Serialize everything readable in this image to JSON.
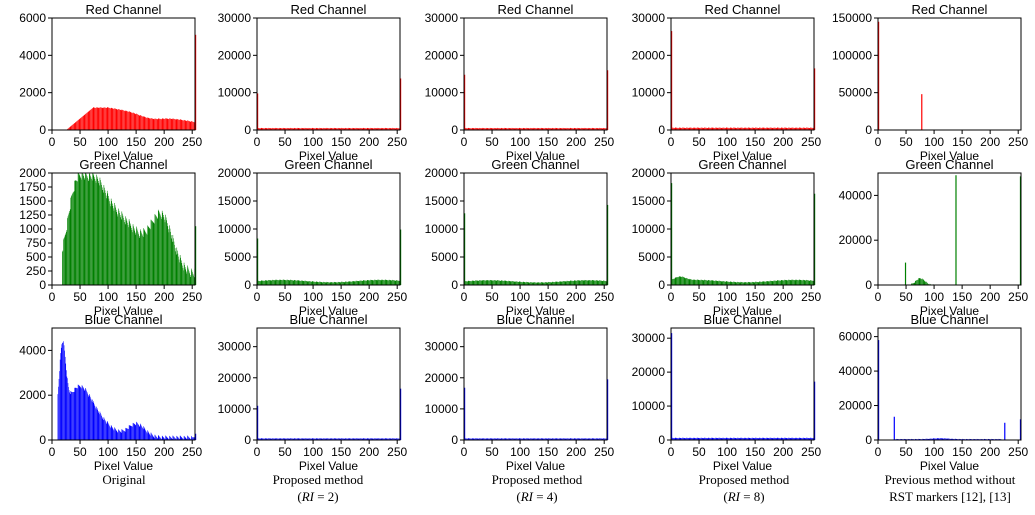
{
  "figure": {
    "captions": [
      {
        "lines": [
          "Original"
        ]
      },
      {
        "lines": [
          "Proposed method",
          "(RI = 2)"
        ]
      },
      {
        "lines": [
          "Proposed method",
          "(RI = 4)"
        ]
      },
      {
        "lines": [
          "Proposed method",
          "(RI = 8)"
        ]
      },
      {
        "lines": [
          "Previous method without",
          "RST markers [12], [13]"
        ]
      }
    ]
  },
  "colors": {
    "Red Channel": "#ff0000",
    "Green Channel": "#008000",
    "Blue Channel": "#0000ff"
  },
  "chart_data": [
    {
      "type": "bar",
      "title": "Red Channel",
      "xlabel": "Pixel Value",
      "col": 0,
      "row": 0,
      "color": "red",
      "xlim": [
        0,
        255
      ],
      "ylim": [
        0,
        6000
      ],
      "yticks": [
        0,
        2000,
        4000,
        6000
      ],
      "xticks": [
        0,
        50,
        100,
        150,
        200,
        250
      ],
      "profile": "orig_red",
      "spikes": [
        [
          255,
          5100
        ]
      ]
    },
    {
      "type": "bar",
      "title": "Red Channel",
      "xlabel": "Pixel Value",
      "col": 1,
      "row": 0,
      "color": "red",
      "xlim": [
        0,
        255
      ],
      "ylim": [
        0,
        30000
      ],
      "yticks": [
        0,
        10000,
        20000,
        30000
      ],
      "xticks": [
        0,
        50,
        100,
        150,
        200,
        250
      ],
      "profile": "flat",
      "level": 500,
      "spikes": [
        [
          0,
          9800
        ],
        [
          255,
          13800
        ]
      ]
    },
    {
      "type": "bar",
      "title": "Red Channel",
      "xlabel": "Pixel Value",
      "col": 2,
      "row": 0,
      "color": "red",
      "xlim": [
        0,
        255
      ],
      "ylim": [
        0,
        30000
      ],
      "yticks": [
        0,
        10000,
        20000,
        30000
      ],
      "xticks": [
        0,
        50,
        100,
        150,
        200,
        250
      ],
      "profile": "flat",
      "level": 500,
      "spikes": [
        [
          0,
          14800
        ],
        [
          255,
          16000
        ]
      ]
    },
    {
      "type": "bar",
      "title": "Red Channel",
      "xlabel": "Pixel Value",
      "col": 3,
      "row": 0,
      "color": "red",
      "xlim": [
        0,
        255
      ],
      "ylim": [
        0,
        30000
      ],
      "yticks": [
        0,
        10000,
        20000,
        30000
      ],
      "xticks": [
        0,
        50,
        100,
        150,
        200,
        250
      ],
      "profile": "flat",
      "level": 600,
      "spikes": [
        [
          0,
          26500
        ],
        [
          255,
          16500
        ]
      ]
    },
    {
      "type": "bar",
      "title": "Red Channel",
      "xlabel": "Pixel Value",
      "col": 4,
      "row": 0,
      "color": "red",
      "xlim": [
        0,
        255
      ],
      "ylim": [
        0,
        150000
      ],
      "yticks": [
        0,
        50000,
        100000,
        150000
      ],
      "xticks": [
        0,
        50,
        100,
        150,
        200,
        250
      ],
      "profile": "none",
      "spikes": [
        [
          0,
          145000
        ],
        [
          77,
          48000
        ]
      ]
    },
    {
      "type": "bar",
      "title": "Green Channel",
      "xlabel": "Pixel Value",
      "col": 0,
      "row": 1,
      "color": "green",
      "xlim": [
        0,
        255
      ],
      "ylim": [
        0,
        2000
      ],
      "yticks": [
        0,
        250,
        500,
        750,
        1000,
        1250,
        1500,
        1750,
        2000
      ],
      "xticks": [
        0,
        50,
        100,
        150,
        200,
        250
      ],
      "profile": "orig_green",
      "spikes": [
        [
          255,
          1050
        ]
      ]
    },
    {
      "type": "bar",
      "title": "Green Channel",
      "xlabel": "Pixel Value",
      "col": 1,
      "row": 1,
      "color": "green",
      "xlim": [
        0,
        255
      ],
      "ylim": [
        0,
        20000
      ],
      "yticks": [
        0,
        5000,
        10000,
        15000,
        20000
      ],
      "xticks": [
        0,
        50,
        100,
        150,
        200,
        250
      ],
      "profile": "wave",
      "level": 700,
      "spikes": [
        [
          0,
          8300
        ],
        [
          255,
          9900
        ]
      ]
    },
    {
      "type": "bar",
      "title": "Green Channel",
      "xlabel": "Pixel Value",
      "col": 2,
      "row": 1,
      "color": "green",
      "xlim": [
        0,
        255
      ],
      "ylim": [
        0,
        20000
      ],
      "yticks": [
        0,
        5000,
        10000,
        15000,
        20000
      ],
      "xticks": [
        0,
        50,
        100,
        150,
        200,
        250
      ],
      "profile": "wave",
      "level": 650,
      "spikes": [
        [
          0,
          12800
        ],
        [
          255,
          14300
        ]
      ]
    },
    {
      "type": "bar",
      "title": "Green Channel",
      "xlabel": "Pixel Value",
      "col": 3,
      "row": 1,
      "color": "green",
      "xlim": [
        0,
        255
      ],
      "ylim": [
        0,
        20000
      ],
      "yticks": [
        0,
        5000,
        10000,
        15000,
        20000
      ],
      "xticks": [
        0,
        50,
        100,
        150,
        200,
        250
      ],
      "profile": "wave_hi",
      "level": 700,
      "spikes": [
        [
          0,
          18200
        ],
        [
          255,
          16300
        ]
      ]
    },
    {
      "type": "bar",
      "title": "Green Channel",
      "xlabel": "Pixel Value",
      "col": 4,
      "row": 1,
      "color": "green",
      "xlim": [
        0,
        255
      ],
      "ylim": [
        0,
        50000
      ],
      "yticks": [
        0,
        20000,
        40000
      ],
      "xticks": [
        0,
        50,
        100,
        150,
        200,
        250
      ],
      "profile": "prev_green",
      "spikes": [
        [
          48,
          10000
        ],
        [
          138,
          49000
        ],
        [
          253,
          48500
        ]
      ]
    },
    {
      "type": "bar",
      "title": "Blue Channel",
      "xlabel": "Pixel Value",
      "col": 0,
      "row": 2,
      "color": "blue",
      "xlim": [
        0,
        255
      ],
      "ylim": [
        0,
        5000
      ],
      "yticks": [
        0,
        2000,
        4000
      ],
      "xticks": [
        0,
        50,
        100,
        150,
        200,
        250
      ],
      "profile": "orig_blue",
      "spikes": [
        [
          255,
          280
        ]
      ]
    },
    {
      "type": "bar",
      "title": "Blue Channel",
      "xlabel": "Pixel Value",
      "col": 1,
      "row": 2,
      "color": "blue",
      "xlim": [
        0,
        255
      ],
      "ylim": [
        0,
        36000
      ],
      "yticks": [
        0,
        10000,
        20000,
        30000
      ],
      "xticks": [
        0,
        50,
        100,
        150,
        200,
        250
      ],
      "profile": "flat",
      "level": 500,
      "spikes": [
        [
          0,
          11000
        ],
        [
          255,
          16500
        ]
      ]
    },
    {
      "type": "bar",
      "title": "Blue Channel",
      "xlabel": "Pixel Value",
      "col": 2,
      "row": 2,
      "color": "blue",
      "xlim": [
        0,
        255
      ],
      "ylim": [
        0,
        36000
      ],
      "yticks": [
        0,
        10000,
        20000,
        30000
      ],
      "xticks": [
        0,
        50,
        100,
        150,
        200,
        250
      ],
      "profile": "flat",
      "level": 500,
      "spikes": [
        [
          0,
          16800
        ],
        [
          255,
          19500
        ]
      ]
    },
    {
      "type": "bar",
      "title": "Blue Channel",
      "xlabel": "Pixel Value",
      "col": 3,
      "row": 2,
      "color": "blue",
      "xlim": [
        0,
        255
      ],
      "ylim": [
        0,
        33000
      ],
      "yticks": [
        0,
        10000,
        20000,
        30000
      ],
      "xticks": [
        0,
        50,
        100,
        150,
        200,
        250
      ],
      "profile": "flat",
      "level": 600,
      "spikes": [
        [
          0,
          31500
        ],
        [
          255,
          17200
        ]
      ]
    },
    {
      "type": "bar",
      "title": "Blue Channel",
      "xlabel": "Pixel Value",
      "col": 4,
      "row": 2,
      "color": "blue",
      "xlim": [
        0,
        255
      ],
      "ylim": [
        0,
        65000
      ],
      "yticks": [
        0,
        20000,
        40000,
        60000
      ],
      "xticks": [
        0,
        50,
        100,
        150,
        200,
        250
      ],
      "profile": "prev_blue",
      "spikes": [
        [
          0,
          58000
        ],
        [
          28,
          13500
        ],
        [
          225,
          10000
        ],
        [
          253,
          12000
        ]
      ]
    }
  ]
}
